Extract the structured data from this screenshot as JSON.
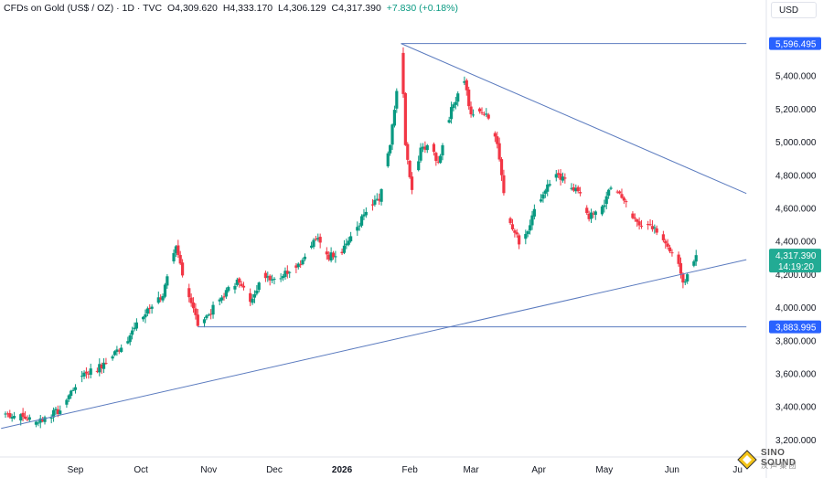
{
  "header": {
    "symbol": "CFDs on Gold (US$ / OZ) · 1D · TVC",
    "open": "O4,309.620",
    "high": "H4,333.170",
    "low": "L4,306.129",
    "close": "C4,317.390",
    "change": "+7.830 (+0.18%)",
    "currency": "USD"
  },
  "watermark": {
    "text": "SINO SOUND",
    "sub": "汉 声 集 团"
  },
  "chart_data": {
    "type": "candlestick",
    "ylim": [
      3200,
      5700
    ],
    "y_ticks": [
      "3,200.000",
      "3,400.000",
      "3,600.000",
      "3,800.000",
      "4,000.000",
      "4,200.000",
      "4,400.000",
      "4,600.000",
      "4,800.000",
      "5,000.000",
      "5,200.000",
      "5,400.000"
    ],
    "x_ticks": [
      {
        "label": "Sep",
        "day": 32,
        "bold": false
      },
      {
        "label": "Oct",
        "day": 62,
        "bold": false
      },
      {
        "label": "Nov",
        "day": 93,
        "bold": false
      },
      {
        "label": "Dec",
        "day": 123,
        "bold": false
      },
      {
        "label": "2026",
        "day": 154,
        "bold": true
      },
      {
        "label": "Feb",
        "day": 185,
        "bold": false
      },
      {
        "label": "Mar",
        "day": 213,
        "bold": false
      },
      {
        "label": "Apr",
        "day": 244,
        "bold": false
      },
      {
        "label": "May",
        "day": 274,
        "bold": false
      },
      {
        "label": "Jun",
        "day": 305,
        "bold": false
      },
      {
        "label": "Ju",
        "day": 335,
        "bold": false
      }
    ],
    "colors": {
      "up": "#089981",
      "down": "#f23645",
      "line": "#5b7bbf",
      "price": "#22ab94",
      "level": "#2962ff"
    },
    "price_labels": [
      {
        "value": 5596.495,
        "text": "5,596.495",
        "kind": "level"
      },
      {
        "value": 3883.995,
        "text": "3,883.995",
        "kind": "level"
      },
      {
        "value": 4317.39,
        "text": "4,317.390",
        "sub": "14:19:20",
        "kind": "price"
      }
    ],
    "lines": [
      {
        "name": "top-level",
        "x1": 181,
        "y1": 5596.495,
        "x2": 339,
        "y2": 5596.495
      },
      {
        "name": "bottom-level",
        "x1": 88,
        "y1": 3883.995,
        "x2": 339,
        "y2": 3883.995
      },
      {
        "name": "descending-trendline",
        "x1": 181,
        "y1": 5596.495,
        "x2": 339,
        "y2": 4690
      },
      {
        "name": "ascending-trendline",
        "x1": -2,
        "y1": 3270,
        "x2": 339,
        "y2": 4290
      }
    ],
    "key_points": [
      [
        0,
        3360
      ],
      [
        10,
        3330
      ],
      [
        14,
        3310
      ],
      [
        25,
        3380
      ],
      [
        35,
        3600
      ],
      [
        45,
        3650
      ],
      [
        55,
        3800
      ],
      [
        65,
        3980
      ],
      [
        72,
        4080
      ],
      [
        78,
        4360
      ],
      [
        83,
        4120
      ],
      [
        88,
        3900
      ],
      [
        93,
        3960
      ],
      [
        100,
        4080
      ],
      [
        106,
        4160
      ],
      [
        112,
        4050
      ],
      [
        118,
        4200
      ],
      [
        124,
        4170
      ],
      [
        130,
        4230
      ],
      [
        136,
        4290
      ],
      [
        142,
        4420
      ],
      [
        148,
        4310
      ],
      [
        154,
        4350
      ],
      [
        160,
        4470
      ],
      [
        166,
        4600
      ],
      [
        171,
        4650
      ],
      [
        176,
        4980
      ],
      [
        180,
        5400
      ],
      [
        181,
        5560
      ],
      [
        183,
        4980
      ],
      [
        186,
        4700
      ],
      [
        190,
        4950
      ],
      [
        194,
        5000
      ],
      [
        198,
        4870
      ],
      [
        202,
        5120
      ],
      [
        207,
        5300
      ],
      [
        210,
        5380
      ],
      [
        213,
        5150
      ],
      [
        217,
        5200
      ],
      [
        221,
        5140
      ],
      [
        225,
        5000
      ],
      [
        228,
        4700
      ],
      [
        231,
        4500
      ],
      [
        235,
        4400
      ],
      [
        238,
        4450
      ],
      [
        242,
        4580
      ],
      [
        247,
        4720
      ],
      [
        252,
        4790
      ],
      [
        257,
        4760
      ],
      [
        262,
        4700
      ],
      [
        267,
        4550
      ],
      [
        272,
        4580
      ],
      [
        277,
        4720
      ],
      [
        282,
        4680
      ],
      [
        287,
        4540
      ],
      [
        292,
        4500
      ],
      [
        297,
        4470
      ],
      [
        302,
        4400
      ],
      [
        307,
        4300
      ],
      [
        310,
        4150
      ],
      [
        313,
        4230
      ],
      [
        316,
        4317.39
      ]
    ]
  }
}
